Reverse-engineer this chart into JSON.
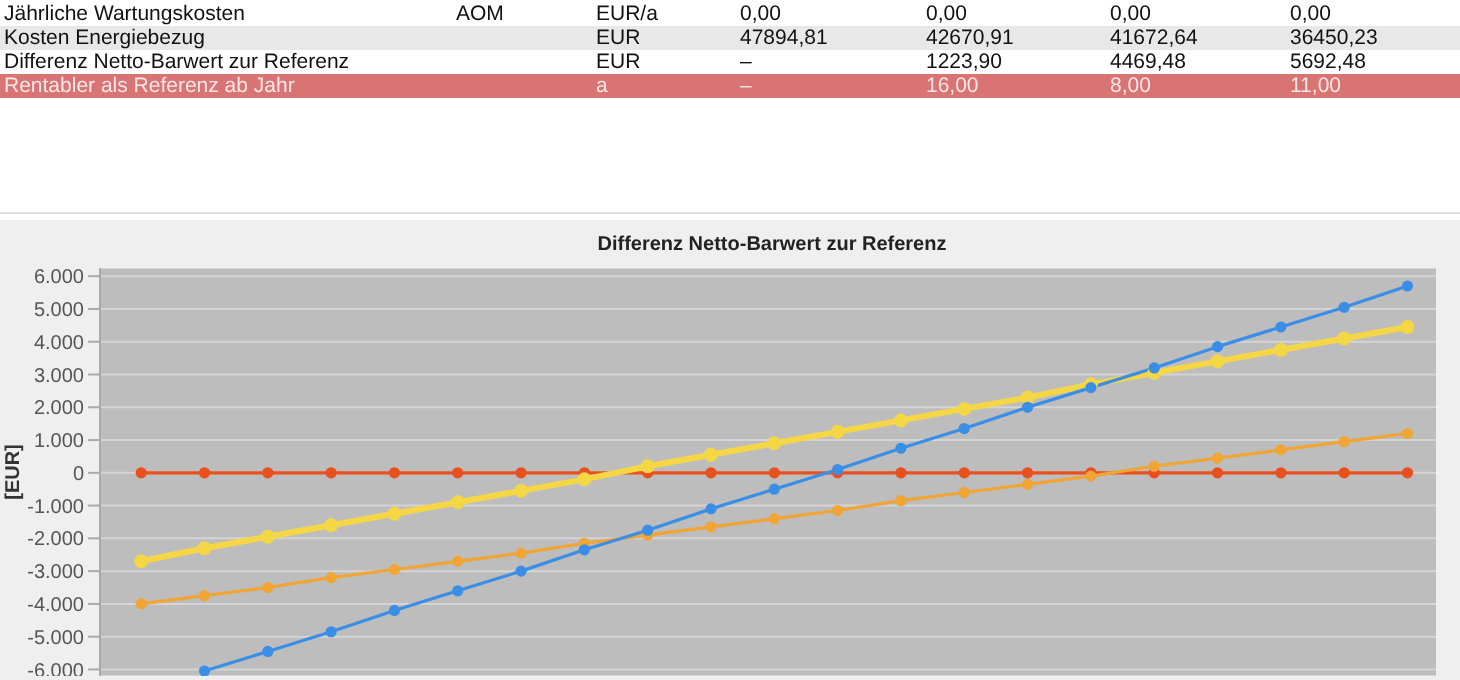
{
  "chart_data": {
    "type": "line",
    "title": "Differenz Netto-Barwert zur Referenz",
    "ylabel": "[EUR]",
    "annotations": [
      "Jährliche Wartungskosten\tAOM\tEUR/a\t0,00\t0,00\t0,00\t0,00",
      "Kosten Energiebezug\t\tEUR\t47894,81\t42670,91\t41672,64\t36450,23",
      "Differenz Netto-Barwert zur Referenz\t\tEUR\t–\t1223,90\t4469,48\t5692,48",
      "Rentabler als Referenz ab Jahr\t\ta\t–\t16,00\t8,00\t11,00"
    ],
    "categories": [
      null,
      null,
      null,
      null,
      null,
      null,
      null,
      null,
      null,
      null,
      null,
      null,
      null,
      null,
      null,
      null,
      null,
      null,
      null,
      null,
      null
    ],
    "series": [
      {
        "color": "#e8501e",
        "values": [
          0,
          0,
          0,
          0,
          0,
          0,
          0,
          0,
          0,
          0,
          0,
          0,
          0,
          0,
          0,
          0,
          0,
          0,
          0,
          0,
          0
        ]
      },
      {
        "color": "#f0a535",
        "values": [
          -4000,
          -3750,
          -3500,
          -3200,
          -2950,
          -2700,
          -2450,
          -2150,
          -1900,
          -1650,
          -1400,
          -1150,
          -850,
          -600,
          -350,
          -100,
          200,
          450,
          700,
          950,
          1200
        ]
      },
      {
        "color": "#f5d745",
        "values": [
          -2700,
          -2300,
          -1950,
          -1600,
          -1250,
          -900,
          -550,
          -200,
          200,
          550,
          900,
          1250,
          1600,
          1950,
          2300,
          2700,
          3050,
          3400,
          3750,
          4100,
          4450
        ]
      },
      {
        "color": "#3a8ee6",
        "values": [
          null,
          -6050,
          -5450,
          -4850,
          -4200,
          -3600,
          -3000,
          -2350,
          -1750,
          -1100,
          -500,
          100,
          750,
          1350,
          2000,
          2600,
          3200,
          3850,
          4450,
          5050,
          5700
        ]
      }
    ],
    "ylim": [
      -6200,
      6250
    ],
    "yticks": [
      {
        "value": -6000,
        "label": "-6.000"
      },
      {
        "value": -5000,
        "label": "-5.000"
      },
      {
        "value": -4000,
        "label": "-4.000"
      },
      {
        "value": -3000,
        "label": "-3.000"
      },
      {
        "value": -2000,
        "label": "-2.000"
      },
      {
        "value": -1000,
        "label": "-1.000"
      },
      0,
      {
        "value": 1000,
        "label": "1.000"
      },
      {
        "value": 2000,
        "label": "2.000"
      },
      {
        "value": 3000,
        "label": "3.000"
      },
      {
        "value": 4000,
        "label": "4.000"
      },
      {
        "value": 5000,
        "label": "5.000"
      },
      {
        "value": 6000,
        "label": "6.000"
      }
    ],
    "grid": "y",
    "marker": "circle",
    "line_style": "solid"
  }
}
